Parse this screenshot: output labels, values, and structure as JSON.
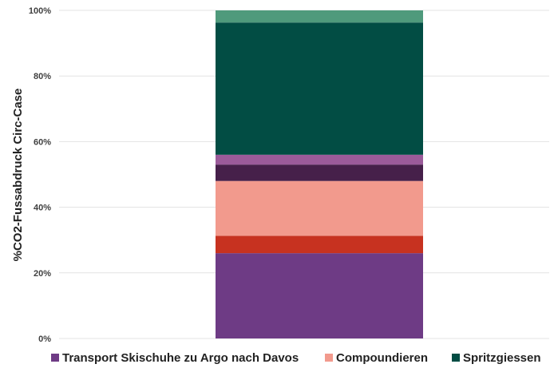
{
  "chart_data": {
    "type": "bar",
    "stacked": true,
    "percent": true,
    "categories": [
      ""
    ],
    "ylabel": "%CO2-Fussabdruck Circ-Case",
    "ylim": [
      0,
      100
    ],
    "yticks": [
      "0%",
      "20%",
      "40%",
      "60%",
      "80%",
      "100%"
    ],
    "yticks_values": [
      0,
      20,
      40,
      60,
      80,
      100
    ],
    "grid": true,
    "legend_position": "bottom",
    "series": [
      {
        "name": "Transport Skischuhe zu Argo nach Davos",
        "values": [
          26.0
        ],
        "color": "#6e3b85"
      },
      {
        "values": [
          5.3
        ],
        "color": "#c73220"
      },
      {
        "name": "Compoundieren",
        "values": [
          16.7
        ],
        "color": "#f29a8d"
      },
      {
        "values": [
          5.0
        ],
        "color": "#46204a"
      },
      {
        "values": [
          3.0
        ],
        "color": "#9b5b9a"
      },
      {
        "name": "Spritzgiessen",
        "values": [
          40.3
        ],
        "color": "#024d44"
      },
      {
        "values": [
          3.7
        ],
        "color": "#4f9a7c"
      }
    ]
  }
}
